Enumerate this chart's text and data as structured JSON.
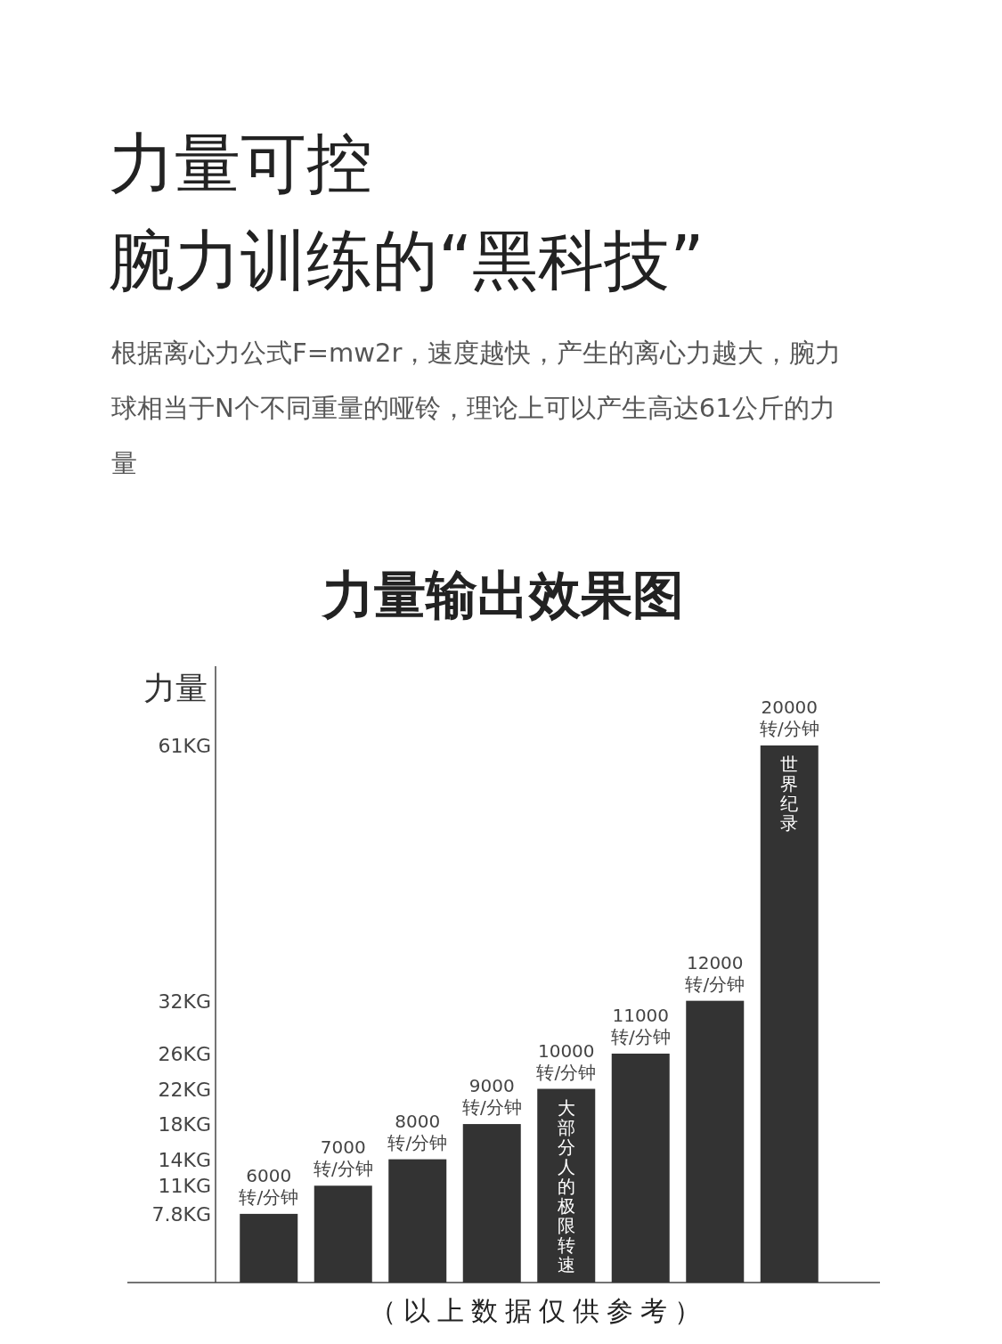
{
  "chart_data": {
    "type": "bar",
    "title": "力量可控",
    "subtitle": "腕力训练的“黑科技”",
    "ylabel": "力量",
    "categories": [
      "6000\n转/分钟",
      "7000\n转/分钟",
      "8000\n转/分钟",
      "9000\n转/分钟",
      "10000\n转/分钟",
      "11000\n转/分钟",
      "12000\n转/分钟",
      "20000\n转/分钟"
    ],
    "values": [
      7.8,
      11,
      14,
      18,
      22,
      26,
      32,
      61
    ],
    "ylim": [
      0,
      70
    ],
    "yticks": [
      {
        "value": 7.8,
        "label": "7.8KG"
      },
      {
        "value": 11,
        "label": "11KG"
      },
      {
        "value": 14,
        "label": "14KG"
      },
      {
        "value": 18,
        "label": "18KG"
      },
      {
        "value": 22,
        "label": "22KG"
      },
      {
        "value": 26,
        "label": "26KG"
      },
      {
        "value": 32,
        "label": "32KG"
      },
      {
        "value": 61,
        "label": "61KG"
      }
    ],
    "color": "#333333",
    "annotations": [
      "根据离心力公式F=mw2r，速度越快，产生的离心力越大，腕力球相当于N个不同重量的哑铃，理论上可以产生高达61公斤的力量",
      "力量输出效果图",
      "大部分人的极限转速",
      "世界纪录",
      "（以上数据仅供参考）"
    ]
  }
}
